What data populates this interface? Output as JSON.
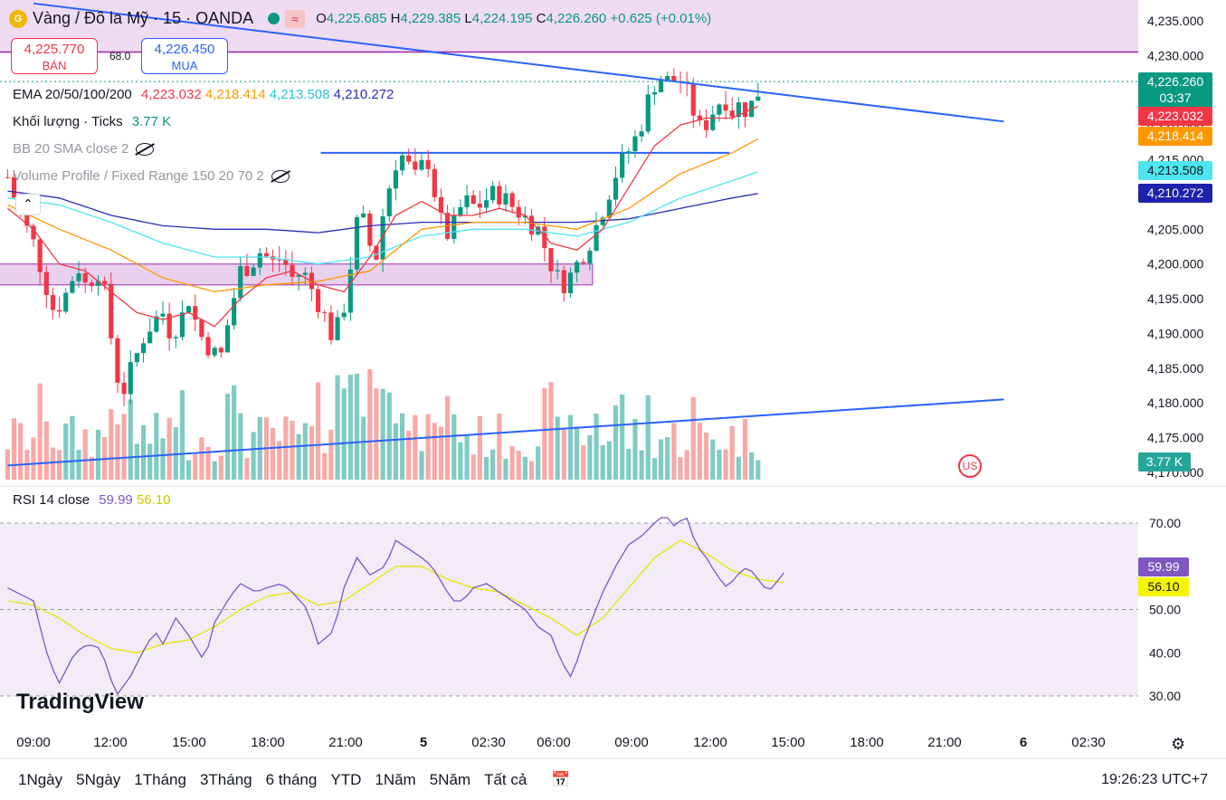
{
  "header": {
    "logo_text": "G",
    "symbol": "Vàng / Đô la Mỹ · 15 · OANDA",
    "wave_glyph": "≈",
    "o_label": "O",
    "o": "4,225.685",
    "h_label": "H",
    "h": "4,229.385",
    "l_label": "L",
    "l": "4,224.195",
    "c_label": "C",
    "c": "4,226.260",
    "change": "+0.625 (+0.01%)"
  },
  "trade": {
    "sell_price": "4,225.770",
    "sell_label": "BÁN",
    "spread": "68.0",
    "buy_price": "4,226.450",
    "buy_label": "MUA"
  },
  "indicators": {
    "ema_label": "EMA 20/50/100/200",
    "ema20": "4,223.032",
    "ema50": "4,218.414",
    "ema100": "4,213.508",
    "ema200": "4,210.272",
    "vol_label": "Khối lượng · Ticks",
    "vol_value": "3.77 K",
    "bb_label": "BB 20 SMA close 2",
    "vp_label": "Volume Profile / Fixed Range 150 20 70 2",
    "rsi_label": "RSI 14 close",
    "rsi_value": "59.99",
    "rsi_ma": "56.10"
  },
  "price_labels": {
    "last": "4,226.260",
    "countdown": "03:37",
    "ema20": "4,223.032",
    "ema50": "4,218.414",
    "ema100": "4,213.508",
    "ema200": "4,210.272",
    "volume": "3.77 K",
    "rsi": "59.99",
    "rsi_ma": "56.10"
  },
  "colors": {
    "up": "#089981",
    "down": "#f23645",
    "ema20": "#f23645",
    "ema50": "#ff9800",
    "ema100": "#4de6ef",
    "ema200": "#2a2eb8",
    "trend": "#2962ff",
    "zone": "#9c27b0",
    "rsi": "#7e57c2",
    "rsi_ma": "#e6e600"
  },
  "brand": "TradingView",
  "flag_icon": "US",
  "time_axis": [
    "09:00",
    "12:00",
    "15:00",
    "18:00",
    "21:00",
    "5",
    "02:30",
    "06:00",
    "09:00",
    "12:00",
    "15:00",
    "18:00",
    "21:00",
    "6",
    "02:30"
  ],
  "range_buttons": [
    "1Ngày",
    "5Ngày",
    "1Tháng",
    "3Tháng",
    "6 tháng",
    "YTD",
    "1Năm",
    "5Năm",
    "Tất cả"
  ],
  "clock": "19:26:23 UTC+7",
  "chart_data": {
    "type": "candlestick",
    "title": "Vàng / Đô la Mỹ · 15 · OANDA",
    "price_axis": {
      "ticks": [
        4235,
        4230,
        4225,
        4220,
        4215,
        4210,
        4205,
        4200,
        4195,
        4190,
        4185,
        4180,
        4175,
        4170
      ],
      "tick_labels": [
        "4,235.000",
        "4,230.000",
        "4,225.000",
        "4,220.000",
        "4,215.000",
        "4,210.000",
        "4,205.000",
        "4,200.000",
        "4,195.000",
        "4,190.000",
        "4,185.000",
        "4,180.000",
        "4,175.000",
        "4,170.000"
      ],
      "range": [
        4168.5,
        4237.5
      ]
    },
    "rsi_axis": {
      "ticks": [
        70,
        60,
        50,
        40,
        30
      ],
      "tick_labels": [
        "70.00",
        "60.00",
        "50.00",
        "40.00",
        "30.00"
      ],
      "range": [
        26,
        74
      ],
      "band": [
        30,
        70
      ]
    },
    "time_range_hours": [
      8.0,
      27.0
    ],
    "close_anchors": [
      [
        8.0,
        4212.5
      ],
      [
        8.5,
        4207
      ],
      [
        9.0,
        4203
      ],
      [
        9.4,
        4198
      ],
      [
        9.8,
        4193
      ],
      [
        10.3,
        4196
      ],
      [
        10.7,
        4200
      ],
      [
        11.0,
        4197
      ],
      [
        11.5,
        4199
      ],
      [
        11.8,
        4195
      ],
      [
        12.2,
        4184
      ],
      [
        12.5,
        4182
      ],
      [
        12.9,
        4186
      ],
      [
        13.3,
        4190
      ],
      [
        13.7,
        4192
      ],
      [
        14.0,
        4193
      ],
      [
        14.3,
        4190
      ],
      [
        14.7,
        4192
      ],
      [
        15.0,
        4195
      ],
      [
        15.4,
        4190
      ],
      [
        15.8,
        4188
      ],
      [
        16.2,
        4186
      ],
      [
        16.6,
        4193
      ],
      [
        17.0,
        4199
      ],
      [
        17.4,
        4200
      ],
      [
        17.8,
        4202
      ],
      [
        18.2,
        4200
      ],
      [
        18.6,
        4201
      ],
      [
        19.0,
        4198
      ],
      [
        19.4,
        4199
      ],
      [
        19.8,
        4196
      ],
      [
        20.2,
        4193
      ],
      [
        20.6,
        4189
      ],
      [
        21.0,
        4194
      ],
      [
        21.3,
        4201
      ],
      [
        21.6,
        4208
      ],
      [
        21.9,
        4204
      ],
      [
        22.2,
        4200
      ],
      [
        22.5,
        4207
      ],
      [
        22.8,
        4212
      ],
      [
        23.1,
        4216
      ],
      [
        23.4,
        4215
      ],
      [
        23.7,
        4212
      ],
      [
        24.0,
        4214
      ],
      [
        24.3,
        4215
      ],
      [
        24.6,
        4208
      ],
      [
        24.9,
        4204
      ],
      [
        25.2,
        4205
      ],
      [
        25.5,
        4208
      ],
      [
        25.8,
        4209
      ],
      [
        26.1,
        4208
      ],
      [
        26.4,
        4209
      ],
      [
        26.7,
        4210
      ],
      [
        27.0,
        4210
      ],
      [
        27.3,
        4209
      ],
      [
        27.6,
        4208
      ],
      [
        27.9,
        4207
      ],
      [
        28.2,
        4206
      ],
      [
        28.5,
        4205
      ],
      [
        28.8,
        4202
      ],
      [
        29.1,
        4199
      ],
      [
        29.4,
        4197
      ],
      [
        29.7,
        4198
      ],
      [
        30.0,
        4200
      ],
      [
        30.3,
        4202
      ],
      [
        30.6,
        4204
      ],
      [
        30.9,
        4207
      ],
      [
        31.2,
        4210
      ],
      [
        31.5,
        4213
      ],
      [
        31.8,
        4215
      ],
      [
        32.1,
        4217
      ],
      [
        32.4,
        4219
      ],
      [
        32.7,
        4223
      ],
      [
        33.0,
        4226
      ],
      [
        33.3,
        4227
      ],
      [
        33.6,
        4226
      ],
      [
        33.9,
        4227
      ],
      [
        34.2,
        4225
      ],
      [
        34.5,
        4222
      ],
      [
        34.8,
        4219
      ],
      [
        35.1,
        4221
      ],
      [
        35.4,
        4223
      ],
      [
        35.7,
        4224
      ],
      [
        36.0,
        4222
      ],
      [
        36.3,
        4223
      ],
      [
        36.6,
        4222
      ],
      [
        36.9,
        4224
      ],
      [
        37.2,
        4226.26
      ]
    ],
    "ema20_anchors": [
      [
        8.0,
        4208
      ],
      [
        9.0,
        4205
      ],
      [
        10.0,
        4200
      ],
      [
        11.0,
        4199
      ],
      [
        12.0,
        4196
      ],
      [
        13.0,
        4193
      ],
      [
        14.0,
        4192
      ],
      [
        15.0,
        4193
      ],
      [
        16.0,
        4191
      ],
      [
        17.0,
        4195
      ],
      [
        18.0,
        4198
      ],
      [
        19.0,
        4199
      ],
      [
        20.0,
        4197
      ],
      [
        21.0,
        4196
      ],
      [
        22.0,
        4201
      ],
      [
        23.0,
        4207
      ],
      [
        24.0,
        4209
      ],
      [
        25.0,
        4207
      ],
      [
        26.0,
        4207
      ],
      [
        27.0,
        4208
      ],
      [
        28.0,
        4207
      ],
      [
        29.0,
        4203
      ],
      [
        30.0,
        4202
      ],
      [
        31.0,
        4205
      ],
      [
        32.0,
        4211
      ],
      [
        33.0,
        4217
      ],
      [
        34.0,
        4220
      ],
      [
        35.0,
        4221
      ],
      [
        36.0,
        4221
      ],
      [
        37.2,
        4223.03
      ]
    ],
    "ema50_anchors": [
      [
        8.0,
        4208.5
      ],
      [
        10.0,
        4205
      ],
      [
        12.0,
        4202
      ],
      [
        14.0,
        4198
      ],
      [
        16.0,
        4196
      ],
      [
        18.0,
        4197
      ],
      [
        20.0,
        4197.5
      ],
      [
        22.0,
        4199
      ],
      [
        24.0,
        4205
      ],
      [
        26.0,
        4206
      ],
      [
        28.0,
        4206
      ],
      [
        30.0,
        4205
      ],
      [
        32.0,
        4208
      ],
      [
        34.0,
        4213
      ],
      [
        36.0,
        4216
      ],
      [
        37.2,
        4218.41
      ]
    ],
    "ema100_anchors": [
      [
        8.0,
        4209.5
      ],
      [
        10.0,
        4208.5
      ],
      [
        12.0,
        4206
      ],
      [
        14.0,
        4203
      ],
      [
        16.0,
        4201
      ],
      [
        18.0,
        4201
      ],
      [
        20.0,
        4200
      ],
      [
        22.0,
        4201
      ],
      [
        24.0,
        4204
      ],
      [
        26.0,
        4205
      ],
      [
        28.0,
        4205
      ],
      [
        30.0,
        4204
      ],
      [
        32.0,
        4206
      ],
      [
        34.0,
        4209.5
      ],
      [
        36.0,
        4212
      ],
      [
        37.2,
        4213.51
      ]
    ],
    "ema200_anchors": [
      [
        8.0,
        4210.5
      ],
      [
        10.0,
        4209.5
      ],
      [
        12.0,
        4207
      ],
      [
        14.0,
        4205.5
      ],
      [
        16.0,
        4205
      ],
      [
        18.0,
        4205
      ],
      [
        20.0,
        4204.5
      ],
      [
        22.0,
        4205.5
      ],
      [
        24.0,
        4206
      ],
      [
        26.0,
        4206
      ],
      [
        28.0,
        4206
      ],
      [
        30.0,
        4206
      ],
      [
        32.0,
        4206.5
      ],
      [
        34.0,
        4208
      ],
      [
        36.0,
        4209.5
      ],
      [
        37.2,
        4210.27
      ]
    ],
    "drawings": {
      "resistance_zone": [
        4230.5,
        4240
      ],
      "support_zone": [
        4197,
        4200
      ],
      "support_zone_hours": [
        8.0,
        30.6
      ],
      "horizontal_line": {
        "price": 4216,
        "hours": [
          22.2,
          38.0
        ]
      },
      "downtrend_line": [
        [
          9.0,
          4237.5
        ],
        [
          46.5,
          4220.5
        ]
      ],
      "uptrend_line": [
        [
          8.0,
          4171
        ],
        [
          46.5,
          4180.5
        ]
      ]
    },
    "rsi_anchors": [
      [
        8.0,
        55
      ],
      [
        9.0,
        52
      ],
      [
        9.6,
        38
      ],
      [
        10.0,
        33
      ],
      [
        10.6,
        40
      ],
      [
        11.1,
        42
      ],
      [
        11.6,
        41
      ],
      [
        12.2,
        30
      ],
      [
        12.8,
        35
      ],
      [
        13.2,
        40
      ],
      [
        13.7,
        45
      ],
      [
        14.0,
        42
      ],
      [
        14.5,
        48
      ],
      [
        15.0,
        44
      ],
      [
        15.6,
        38
      ],
      [
        16.0,
        47
      ],
      [
        16.6,
        53
      ],
      [
        17.0,
        56
      ],
      [
        17.6,
        54
      ],
      [
        18.0,
        55
      ],
      [
        18.6,
        56
      ],
      [
        19.0,
        54
      ],
      [
        19.6,
        50
      ],
      [
        20.0,
        42
      ],
      [
        20.6,
        45
      ],
      [
        21.0,
        55
      ],
      [
        21.5,
        62
      ],
      [
        22.0,
        58
      ],
      [
        22.6,
        60
      ],
      [
        23.0,
        66
      ],
      [
        23.5,
        64
      ],
      [
        24.0,
        62
      ],
      [
        24.4,
        60
      ],
      [
        24.8,
        56
      ],
      [
        25.2,
        52
      ],
      [
        25.6,
        52
      ],
      [
        26.0,
        55
      ],
      [
        26.5,
        56
      ],
      [
        27.0,
        54
      ],
      [
        27.5,
        52
      ],
      [
        28.0,
        50
      ],
      [
        28.5,
        46
      ],
      [
        29.0,
        44
      ],
      [
        29.4,
        38
      ],
      [
        29.8,
        34
      ],
      [
        30.2,
        42
      ],
      [
        30.6,
        48
      ],
      [
        31.0,
        54
      ],
      [
        31.5,
        60
      ],
      [
        32.0,
        65
      ],
      [
        32.5,
        67
      ],
      [
        33.0,
        70
      ],
      [
        33.4,
        72
      ],
      [
        33.8,
        69
      ],
      [
        34.2,
        72
      ],
      [
        34.6,
        65
      ],
      [
        35.0,
        62
      ],
      [
        35.4,
        58
      ],
      [
        35.8,
        55
      ],
      [
        36.2,
        58
      ],
      [
        36.6,
        60
      ],
      [
        37.0,
        57
      ],
      [
        37.4,
        54
      ],
      [
        37.8,
        57
      ],
      [
        38.2,
        59.99
      ]
    ],
    "rsi_ma_anchors": [
      [
        8.0,
        52
      ],
      [
        9.0,
        51
      ],
      [
        10.0,
        48
      ],
      [
        11.0,
        44
      ],
      [
        12.0,
        41
      ],
      [
        13.0,
        40
      ],
      [
        14.0,
        42
      ],
      [
        15.0,
        43
      ],
      [
        16.0,
        46
      ],
      [
        17.0,
        50
      ],
      [
        18.0,
        53
      ],
      [
        19.0,
        54
      ],
      [
        20.0,
        51
      ],
      [
        21.0,
        52
      ],
      [
        22.0,
        56
      ],
      [
        23.0,
        60
      ],
      [
        24.0,
        60
      ],
      [
        25.0,
        57
      ],
      [
        26.0,
        55
      ],
      [
        27.0,
        54
      ],
      [
        28.0,
        51
      ],
      [
        29.0,
        48
      ],
      [
        30.0,
        44
      ],
      [
        31.0,
        48
      ],
      [
        32.0,
        55
      ],
      [
        33.0,
        62
      ],
      [
        34.0,
        66
      ],
      [
        35.0,
        63
      ],
      [
        36.0,
        59
      ],
      [
        37.0,
        57
      ],
      [
        38.2,
        56.1
      ]
    ],
    "volume_max_k": 10.0,
    "volume_last_k": 3.77
  }
}
